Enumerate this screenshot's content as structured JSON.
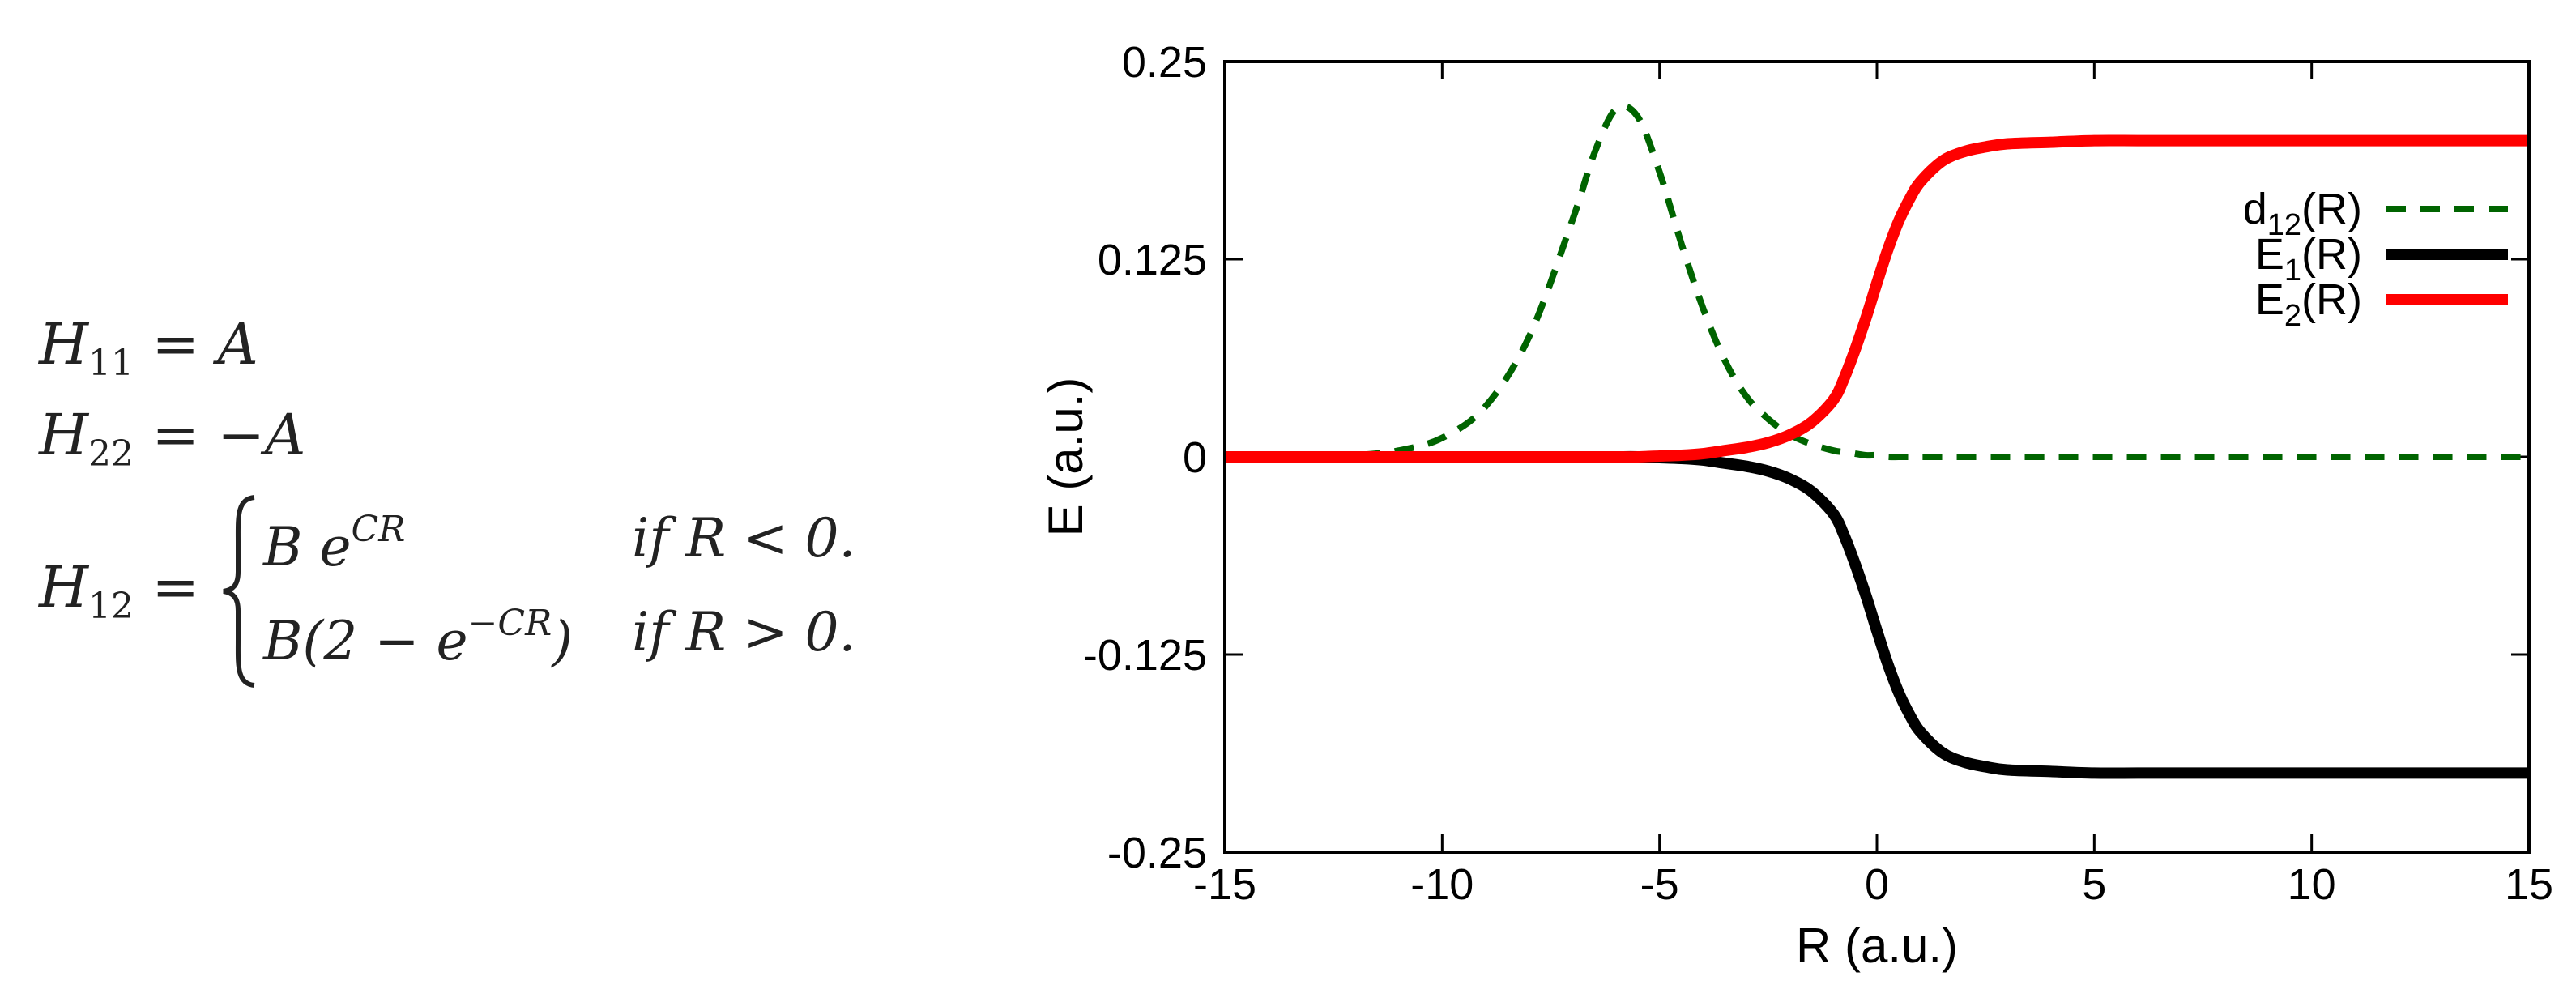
{
  "equations": {
    "h11": {
      "lhs": "H",
      "lhs_sub": "11",
      "rhs": "= A"
    },
    "h22": {
      "lhs": "H",
      "lhs_sub": "22",
      "rhs": "= −A"
    },
    "h12": {
      "lhs": "H",
      "lhs_sub": "12",
      "eq": "=",
      "case1_expr": "B e",
      "case1_sup": "CR",
      "case1_cond": "if R < 0.",
      "case2_expr_a": "B(2 − e",
      "case2_sup": "−CR",
      "case2_expr_b": ")",
      "case2_cond": "if R > 0."
    }
  },
  "chart_data": {
    "type": "line",
    "xlabel": "R (a.u.)",
    "ylabel": "E (a.u.)",
    "xlim": [
      -15,
      15
    ],
    "ylim": [
      -0.25,
      0.25
    ],
    "xticks": [
      -15,
      -10,
      -5,
      0,
      5,
      10,
      15
    ],
    "xtick_labels": [
      "-15",
      "-10",
      "-5",
      "0",
      "5",
      "10",
      "15"
    ],
    "yticks": [
      -0.25,
      -0.125,
      0,
      0.125,
      0.25
    ],
    "ytick_labels": [
      "-0.25",
      "-0.125",
      "0",
      "0.125",
      "0.25"
    ],
    "legend_position": "top-right",
    "x": [
      -15,
      -14,
      -13,
      -12,
      -11,
      -10,
      -9,
      -8,
      -7,
      -6.5,
      -6,
      -5.5,
      -5,
      -4.5,
      -4,
      -3.5,
      -3,
      -2.5,
      -2,
      -1.5,
      -1,
      -0.75,
      -0.5,
      -0.25,
      0,
      0.25,
      0.5,
      0.75,
      1,
      1.5,
      2,
      2.5,
      3,
      4,
      5,
      6,
      7,
      8,
      9,
      10,
      11,
      12,
      13,
      14,
      15
    ],
    "series": [
      {
        "name": "d12(R)",
        "label_main": "d",
        "label_sub": "12",
        "label_tail": "(R)",
        "color": "#006400",
        "style": "dashed",
        "values": [
          0,
          0,
          0,
          0.001,
          0.004,
          0.012,
          0.032,
          0.076,
          0.15,
          0.192,
          0.22,
          0.215,
          0.18,
          0.135,
          0.094,
          0.061,
          0.038,
          0.024,
          0.014,
          0.008,
          0.004,
          0.003,
          0.002,
          0.001,
          0.001,
          0,
          0,
          0,
          0,
          0,
          0,
          0,
          0,
          0,
          0,
          0,
          0,
          0,
          0,
          0,
          0,
          0,
          0,
          0,
          0
        ]
      },
      {
        "name": "E1(R)",
        "label_main": "E",
        "label_sub": "1",
        "label_tail": "(R)",
        "color": "#000000",
        "style": "solid",
        "values": [
          0,
          0,
          0,
          0,
          0,
          0,
          0,
          0,
          0,
          0,
          0,
          0,
          -0.0005,
          -0.001,
          -0.002,
          -0.004,
          -0.006,
          -0.009,
          -0.014,
          -0.022,
          -0.036,
          -0.05,
          -0.068,
          -0.088,
          -0.11,
          -0.131,
          -0.149,
          -0.163,
          -0.174,
          -0.187,
          -0.193,
          -0.196,
          -0.198,
          -0.199,
          -0.2,
          -0.2,
          -0.2,
          -0.2,
          -0.2,
          -0.2,
          -0.2,
          -0.2,
          -0.2,
          -0.2,
          -0.2
        ]
      },
      {
        "name": "E2(R)",
        "label_main": "E",
        "label_sub": "2",
        "label_tail": "(R)",
        "color": "#ff0000",
        "style": "solid",
        "values": [
          0,
          0,
          0,
          0,
          0,
          0,
          0,
          0,
          0,
          0,
          0,
          0,
          0.0005,
          0.001,
          0.002,
          0.004,
          0.006,
          0.009,
          0.014,
          0.022,
          0.036,
          0.05,
          0.068,
          0.088,
          0.11,
          0.131,
          0.149,
          0.163,
          0.174,
          0.187,
          0.193,
          0.196,
          0.198,
          0.199,
          0.2,
          0.2,
          0.2,
          0.2,
          0.2,
          0.2,
          0.2,
          0.2,
          0.2,
          0.2,
          0.2
        ]
      }
    ]
  }
}
